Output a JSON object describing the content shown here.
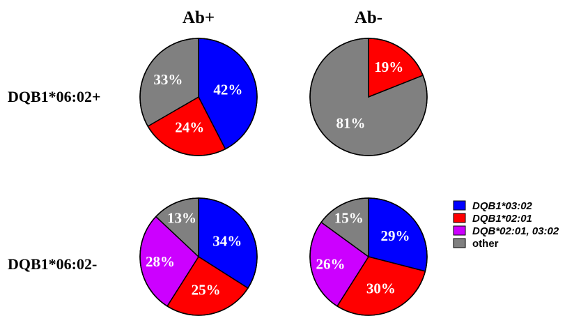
{
  "colors": {
    "DQB1*03:02": "#0000ff",
    "DQB1*02:01": "#ff0000",
    "DQB*02:01, 03:02": "#cc00ff",
    "other": "#808080"
  },
  "chart_data": {
    "type": "pie",
    "column_headers": [
      "Ab+",
      "Ab-"
    ],
    "row_labels": [
      "DQB1*06:02+",
      "DQB1*06:02-"
    ],
    "legend": {
      "placement": "right",
      "entries": [
        {
          "label": "DQB1*03:02",
          "italic": true
        },
        {
          "label": "DQB1*02:01",
          "italic": true
        },
        {
          "label": "DQB*02:01, 03:02",
          "italic": true
        },
        {
          "label": "other",
          "italic": false
        }
      ]
    },
    "pies": [
      {
        "row": "DQB1*06:02+",
        "column": "Ab+",
        "slices": [
          {
            "category": "DQB1*03:02",
            "value": 42,
            "label": "42%"
          },
          {
            "category": "DQB1*02:01",
            "value": 24,
            "label": "24%"
          },
          {
            "category": "other",
            "value": 33,
            "label": "33%"
          }
        ]
      },
      {
        "row": "DQB1*06:02+",
        "column": "Ab-",
        "slices": [
          {
            "category": "DQB1*02:01",
            "value": 19,
            "label": "19%"
          },
          {
            "category": "other",
            "value": 81,
            "label": "81%"
          }
        ]
      },
      {
        "row": "DQB1*06:02-",
        "column": "Ab+",
        "slices": [
          {
            "category": "DQB1*03:02",
            "value": 34,
            "label": "34%"
          },
          {
            "category": "DQB1*02:01",
            "value": 25,
            "label": "25%"
          },
          {
            "category": "DQB*02:01, 03:02",
            "value": 28,
            "label": "28%"
          },
          {
            "category": "other",
            "value": 13,
            "label": "13%"
          }
        ]
      },
      {
        "row": "DQB1*06:02-",
        "column": "Ab-",
        "slices": [
          {
            "category": "DQB1*03:02",
            "value": 29,
            "label": "29%"
          },
          {
            "category": "DQB1*02:01",
            "value": 30,
            "label": "30%"
          },
          {
            "category": "DQB*02:01, 03:02",
            "value": 26,
            "label": "26%"
          },
          {
            "category": "other",
            "value": 15,
            "label": "15%"
          }
        ]
      }
    ]
  }
}
